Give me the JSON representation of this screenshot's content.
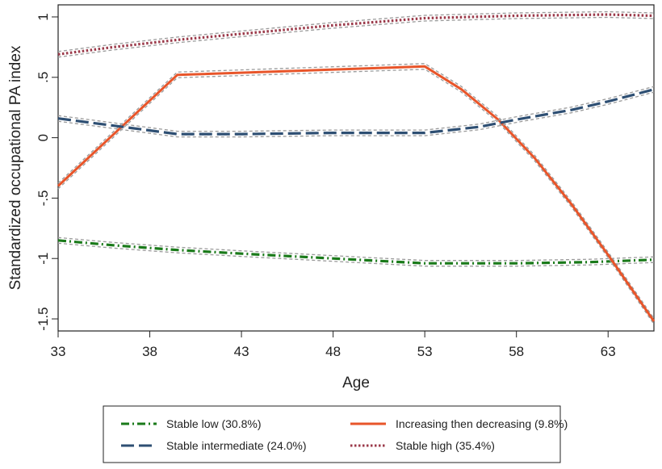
{
  "chart_data": {
    "type": "line",
    "title": "",
    "xlabel": "Age",
    "ylabel": "Standardized occupational PA index",
    "xlim": [
      33,
      65.5
    ],
    "ylim": [
      -1.6,
      1.1
    ],
    "x_ticks": [
      33,
      38,
      43,
      48,
      53,
      58,
      63
    ],
    "x_tick_labels": [
      "33",
      "38",
      "43",
      "48",
      "53",
      "58",
      "63"
    ],
    "y_ticks": [
      1,
      0.5,
      0,
      -0.5,
      -1,
      -1.5
    ],
    "y_tick_labels": [
      "1",
      ".5",
      "0",
      "-.5",
      "-1",
      "-1.5"
    ],
    "grid": false,
    "legend_position": "bottom",
    "series": [
      {
        "name": "Stable low (30.8%)",
        "color": "#1a7a1a",
        "style": "dash-dot",
        "x": [
          33,
          36,
          39.5,
          43,
          48,
          53,
          58,
          62,
          65.5
        ],
        "y": [
          -0.85,
          -0.89,
          -0.93,
          -0.96,
          -1.0,
          -1.04,
          -1.04,
          -1.03,
          -1.01
        ]
      },
      {
        "name": "Increasing then decreasing (9.8%)",
        "color": "#e8552a",
        "style": "solid",
        "x": [
          33,
          39.5,
          53,
          55,
          57,
          59,
          61,
          63,
          65.5
        ],
        "y": [
          -0.4,
          0.52,
          0.59,
          0.4,
          0.15,
          -0.17,
          -0.55,
          -0.97,
          -1.52
        ]
      },
      {
        "name": "Stable intermediate (24.0%)",
        "color": "#2e4f73",
        "style": "long-dash",
        "x": [
          33,
          36,
          39.5,
          43,
          48,
          53,
          56,
          58,
          61,
          63,
          65.5
        ],
        "y": [
          0.16,
          0.1,
          0.03,
          0.03,
          0.04,
          0.04,
          0.09,
          0.15,
          0.23,
          0.3,
          0.4
        ]
      },
      {
        "name": "Stable high (35.4%)",
        "color": "#9b3a4a",
        "style": "dotted",
        "x": [
          33,
          36,
          39.5,
          43,
          48,
          53,
          58,
          63,
          65.5
        ],
        "y": [
          0.69,
          0.75,
          0.81,
          0.86,
          0.93,
          0.99,
          1.01,
          1.02,
          1.01
        ]
      }
    ],
    "legend_order": [
      0,
      1,
      2,
      3
    ]
  }
}
